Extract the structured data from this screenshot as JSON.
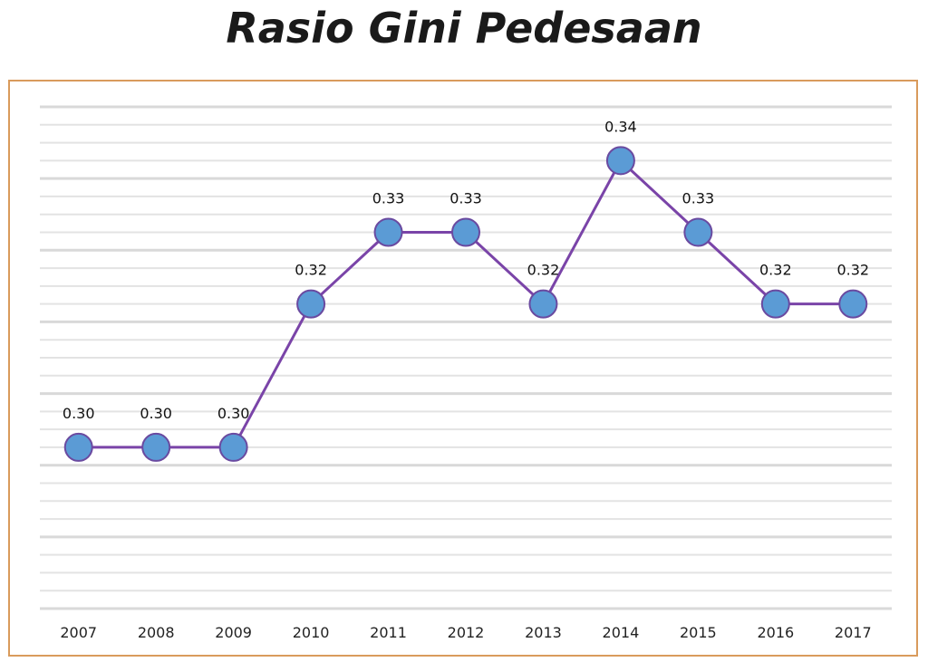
{
  "title": "Rasio Gini Pedesaan",
  "chart_data": {
    "type": "line",
    "title": "Rasio Gini Pedesaan",
    "xlabel": "",
    "ylabel": "",
    "categories": [
      "2007",
      "2008",
      "2009",
      "2010",
      "2011",
      "2012",
      "2013",
      "2014",
      "2015",
      "2016",
      "2017"
    ],
    "series": [
      {
        "values": [
          0.3,
          0.3,
          0.3,
          0.32,
          0.33,
          0.33,
          0.32,
          0.34,
          0.33,
          0.32,
          0.32
        ],
        "labels": [
          "0.30",
          "0.30",
          "0.30",
          "0.32",
          "0.33",
          "0.33",
          "0.32",
          "0.34",
          "0.33",
          "0.32",
          "0.32"
        ]
      }
    ],
    "ylim": [
      0.2775,
      0.3475
    ],
    "grid": true,
    "legend": "none",
    "colors": {
      "line": "#7a44a8",
      "marker_fill": "#5b9bd5",
      "marker_stroke": "#6a4aa0",
      "grid": "#e3e3e3",
      "frame": "#d99b5c"
    }
  }
}
